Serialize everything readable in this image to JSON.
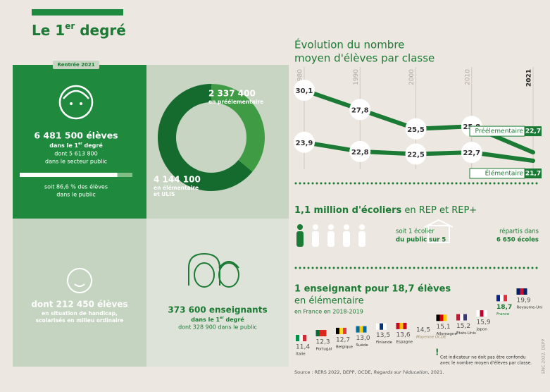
{
  "header": {
    "title": [
      "Le 1",
      "er",
      " degré"
    ]
  },
  "students": {
    "tag": "Rentrée 2021",
    "total": "6 481 500 élèves",
    "scope": [
      "dans le 1",
      "er",
      " degré"
    ],
    "public": [
      "dont 5 613 800",
      "dans le secteur public"
    ],
    "share": {
      "value": 86.6,
      "label": "soit 86,6 % des élèves"
    },
    "share_rest": "dans le public"
  },
  "donut": {
    "segments": [
      {
        "value": 2337400,
        "label": "2 337 400",
        "caption": [
          "en préélementaire"
        ],
        "color": "#3f9c45"
      },
      {
        "value": 4144100,
        "label": "4 144 100",
        "caption": [
          "en élémentaire",
          "et ULIS"
        ],
        "color": "#146b2d"
      }
    ]
  },
  "disability": {
    "title": "dont 212 450 élèves",
    "lines": [
      "en situation de handicap,",
      "scolarisés en milieu ordinaire"
    ]
  },
  "teachers": {
    "title": "373 600 enseignants",
    "scope": [
      "dans le 1",
      "er",
      " degré"
    ],
    "public": "dont 328 900 dans le public"
  },
  "evolution": {
    "type": "line",
    "title": [
      "Évolution du nombre",
      "moyen d'élèves par classe"
    ],
    "x": [
      1980,
      1990,
      2000,
      2010,
      2021
    ],
    "series": [
      {
        "name": "Préélementaire",
        "color": "#1b7a33",
        "values": [
          30.1,
          27.8,
          25.5,
          25.8,
          22.7
        ],
        "value_labels": [
          "30,1",
          "27,8",
          "25,5",
          "25,8",
          "22,7"
        ]
      },
      {
        "name": "Élémentaire",
        "color": "#1b7a33",
        "values": [
          23.9,
          22.8,
          22.5,
          22.7,
          21.7
        ],
        "value_labels": [
          "23,9",
          "22,8",
          "22,5",
          "22,7",
          "21,7"
        ]
      }
    ]
  },
  "rep": {
    "title_bold": "1,1 million d'écoliers",
    "title_rest": " en REP et REP+",
    "ratio": [
      "soit 1 écolier",
      "du public sur 5"
    ],
    "schools": [
      "répartis dans",
      "6 650 écoles"
    ]
  },
  "ratio": {
    "type": "bar",
    "title": "1 enseignant pour 18,7 élèves",
    "subtitle": "en élémentaire",
    "period": "en France en 2018-2019",
    "categories": [
      "Italie",
      "Portugal",
      "Belgique",
      "Suède",
      "Finlande",
      "Espagne",
      "Moyenne OCDE",
      "Allemagne",
      "États-Unis",
      "Japon",
      "France",
      "Royaume-Uni"
    ],
    "values": [
      11.4,
      12.3,
      12.7,
      13.0,
      13.5,
      13.6,
      14.5,
      15.1,
      15.2,
      15.9,
      18.7,
      19.9
    ],
    "value_labels": [
      "11,4",
      "12,3",
      "12,7",
      "13,0",
      "13,5",
      "13,6",
      "14,5",
      "15,1",
      "15,2",
      "15,9",
      "18,7",
      "19,9"
    ],
    "flag_colors": [
      [
        "#009246",
        "#ffffff",
        "#ce2b37"
      ],
      [
        "#046a38",
        "#da291c",
        "#da291c"
      ],
      [
        "#000000",
        "#fdda24",
        "#ef3340"
      ],
      [
        "#006aa7",
        "#fecc00",
        "#006aa7"
      ],
      [
        "#ffffff",
        "#003580",
        "#ffffff"
      ],
      [
        "#c60b1e",
        "#ffc400",
        "#c60b1e"
      ],
      null,
      [
        "#000000",
        "#dd0000",
        "#ffce00"
      ],
      [
        "#b22234",
        "#ffffff",
        "#3c3b6e"
      ],
      [
        "#ffffff",
        "#bc002d",
        "#ffffff"
      ],
      [
        "#002395",
        "#ffffff",
        "#ed2939"
      ],
      [
        "#012169",
        "#c8102e",
        "#012169"
      ]
    ],
    "disclaimer": [
      "Cet indicateur ne doit pas être confondu",
      "avec le nombre moyen d'élèves par classe."
    ],
    "source": [
      "Source : RERS 2022, DEPP, OCDE, ",
      "Regards sur l'éducation",
      ", 2021."
    ],
    "credit": "ENC 2022, DEPP"
  }
}
